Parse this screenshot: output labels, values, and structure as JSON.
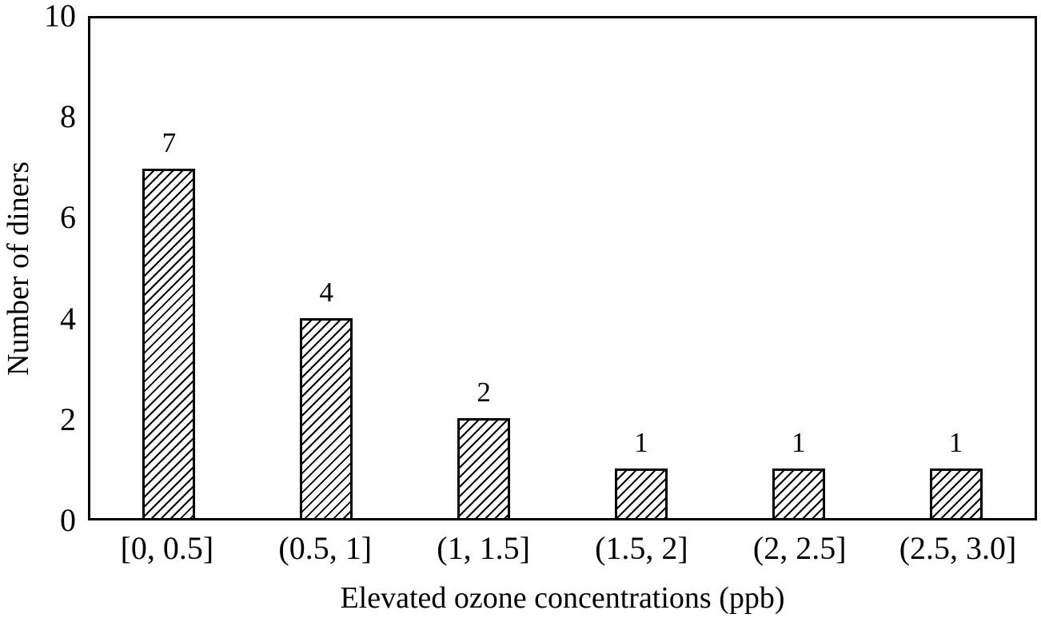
{
  "chart_data": {
    "type": "bar",
    "categories": [
      "[0, 0.5]",
      "(0.5, 1]",
      "(1, 1.5]",
      "(1.5, 2]",
      "(2, 2.5]",
      "(2.5, 3.0]"
    ],
    "values": [
      7,
      4,
      2,
      1,
      1,
      1
    ],
    "bar_value_labels": [
      "7",
      "4",
      "2",
      "1",
      "1",
      "1"
    ],
    "title": "",
    "xlabel": "Elevated ozone concentrations (ppb)",
    "ylabel": "Number of diners",
    "ylim": [
      0,
      10
    ],
    "yticks": [
      0,
      2,
      4,
      6,
      8,
      10
    ],
    "grid": false,
    "legend": "none",
    "bar_style": {
      "fill": "#ffffff",
      "hatch": "diagonal-forward-slash",
      "hatch_color": "#000000",
      "border_color": "#000000"
    },
    "colors": {
      "background": "#ffffff",
      "axis": "#000000",
      "text": "#000000"
    }
  }
}
